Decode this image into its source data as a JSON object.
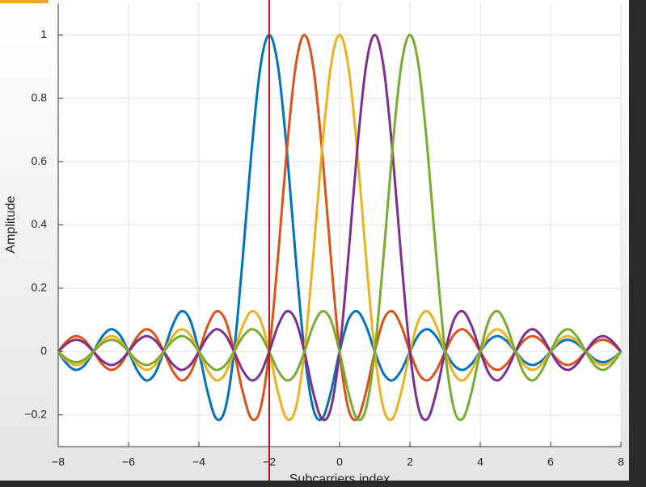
{
  "chart_data": {
    "type": "line",
    "xlabel": "Subcarriers index",
    "ylabel": "Amplitude",
    "xlim": [
      -8,
      8
    ],
    "ylim": [
      -0.3,
      1.1
    ],
    "xticks": [
      {
        "value": -8,
        "label": "−8"
      },
      {
        "value": -6,
        "label": "−6"
      },
      {
        "value": -4,
        "label": "−4"
      },
      {
        "value": -2,
        "label": "−2"
      },
      0,
      2,
      4,
      6,
      8
    ],
    "yticks": [
      {
        "value": -0.2,
        "label": "−0.2"
      },
      0,
      0.2,
      0.4,
      0.6,
      0.8,
      1
    ],
    "grid": true,
    "vertical_line": {
      "x": -2,
      "color": "#b01e1e"
    },
    "x": [
      -8,
      -7.75,
      -7.5,
      -7.25,
      -7,
      -6.75,
      -6.5,
      -6.25,
      -6,
      -5.75,
      -5.5,
      -5.25,
      -5,
      -4.75,
      -4.5,
      -4.25,
      -4,
      -3.75,
      -3.5,
      -3.25,
      -3,
      -2.75,
      -2.5,
      -2.25,
      -2,
      -1.75,
      -1.5,
      -1.25,
      -1,
      -0.75,
      -0.5,
      -0.25,
      0,
      0.25,
      0.5,
      0.75,
      1,
      1.25,
      1.5,
      1.75,
      2,
      2.25,
      2.5,
      2.75,
      3,
      3.25,
      3.5,
      3.75,
      4,
      4.25,
      4.5,
      4.75,
      5,
      5.25,
      5.5,
      5.75,
      6,
      6.25,
      6.5,
      6.75,
      7,
      7.25,
      7.5,
      7.75,
      8
    ],
    "series": [
      {
        "color": "#0072bd",
        "values": [
          0,
          -0.0391,
          -0.0579,
          -0.0429,
          0,
          0.0474,
          0.0707,
          0.053,
          0,
          -0.06,
          -0.0909,
          -0.0693,
          0,
          0.0818,
          0.1273,
          0.1,
          0,
          -0.1286,
          -0.2122,
          -0.1801,
          0,
          0.3001,
          0.6366,
          0.9003,
          1,
          0.9003,
          0.6366,
          0.3001,
          0,
          -0.1801,
          -0.2122,
          -0.1286,
          0,
          0.1,
          0.1273,
          0.0818,
          0,
          -0.0693,
          -0.0909,
          -0.06,
          0,
          0.053,
          0.0707,
          0.0474,
          0,
          -0.0429,
          -0.0579,
          -0.0391,
          0,
          0.036,
          0.049,
          0.0333,
          0,
          -0.031,
          -0.0424,
          -0.029,
          0,
          0.0273,
          0.0374,
          0.0257,
          0,
          -0.0243,
          -0.0335,
          -0.0231,
          0
        ]
      },
      {
        "color": "#d95319",
        "values": [
          0,
          0.0333,
          0.049,
          0.036,
          0,
          -0.0391,
          -0.0579,
          -0.0429,
          0,
          0.0474,
          0.0707,
          0.053,
          0,
          -0.06,
          -0.0909,
          -0.0693,
          0,
          0.0818,
          0.1273,
          0.1,
          0,
          -0.1286,
          -0.2122,
          -0.1801,
          0,
          0.3001,
          0.6366,
          0.9003,
          1,
          0.9003,
          0.6366,
          0.3001,
          0,
          -0.1801,
          -0.2122,
          -0.1286,
          0,
          0.1,
          0.1273,
          0.0818,
          0,
          -0.0693,
          -0.0909,
          -0.06,
          0,
          0.053,
          0.0707,
          0.0474,
          0,
          -0.0429,
          -0.0579,
          -0.0391,
          0,
          0.036,
          0.049,
          0.0333,
          0,
          -0.031,
          -0.0424,
          -0.029,
          0,
          0.0273,
          0.0374,
          0.0257,
          0
        ]
      },
      {
        "color": "#edb120",
        "values": [
          0,
          -0.029,
          -0.0424,
          -0.031,
          0,
          0.0333,
          0.049,
          0.036,
          0,
          -0.0391,
          -0.0579,
          -0.0429,
          0,
          0.0474,
          0.0707,
          0.053,
          0,
          -0.06,
          -0.0909,
          -0.0693,
          0,
          0.0818,
          0.1273,
          0.1,
          0,
          -0.1286,
          -0.2122,
          -0.1801,
          0,
          0.3001,
          0.6366,
          0.9003,
          1,
          0.9003,
          0.6366,
          0.3001,
          0,
          -0.1801,
          -0.2122,
          -0.1286,
          0,
          0.1,
          0.1273,
          0.0818,
          0,
          -0.0693,
          -0.0909,
          -0.06,
          0,
          0.053,
          0.0707,
          0.0474,
          0,
          -0.0429,
          -0.0579,
          -0.0391,
          0,
          0.036,
          0.049,
          0.0333,
          0,
          -0.031,
          -0.0424,
          -0.029,
          0
        ]
      },
      {
        "color": "#7e2f8e",
        "values": [
          0,
          0.0257,
          0.0374,
          0.0273,
          0,
          -0.029,
          -0.0424,
          -0.031,
          0,
          0.0333,
          0.049,
          0.036,
          0,
          -0.0391,
          -0.0579,
          -0.0429,
          0,
          0.0474,
          0.0707,
          0.053,
          0,
          -0.06,
          -0.0909,
          -0.0693,
          0,
          0.0818,
          0.1273,
          0.1,
          0,
          -0.1286,
          -0.2122,
          -0.1801,
          0,
          0.3001,
          0.6366,
          0.9003,
          1,
          0.9003,
          0.6366,
          0.3001,
          0,
          -0.1801,
          -0.2122,
          -0.1286,
          0,
          0.1,
          0.1273,
          0.0818,
          0,
          -0.0693,
          -0.0909,
          -0.06,
          0,
          0.053,
          0.0707,
          0.0474,
          0,
          -0.0429,
          -0.0579,
          -0.0391,
          0,
          0.036,
          0.049,
          0.0333,
          0
        ]
      },
      {
        "color": "#77ac30",
        "values": [
          0,
          -0.0231,
          -0.0335,
          -0.0243,
          0,
          0.0257,
          0.0374,
          0.0273,
          0,
          -0.029,
          -0.0424,
          -0.031,
          0,
          0.0333,
          0.049,
          0.036,
          0,
          -0.0391,
          -0.0579,
          -0.0429,
          0,
          0.0474,
          0.0707,
          0.053,
          0,
          -0.06,
          -0.0909,
          -0.0693,
          0,
          0.0818,
          0.1273,
          0.1,
          0,
          -0.1286,
          -0.2122,
          -0.1801,
          0,
          0.3001,
          0.6366,
          0.9003,
          1,
          0.9003,
          0.6366,
          0.3001,
          0,
          -0.1801,
          -0.2122,
          -0.1286,
          0,
          0.1,
          0.1273,
          0.0818,
          0,
          -0.0693,
          -0.0909,
          -0.06,
          0,
          0.053,
          0.0707,
          0.0474,
          0,
          -0.0429,
          -0.0579,
          -0.0391,
          0
        ]
      }
    ]
  }
}
